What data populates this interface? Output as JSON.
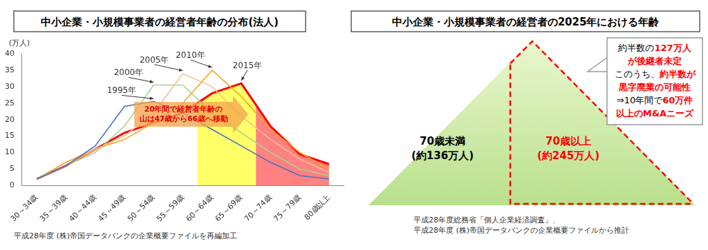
{
  "chart_data": {
    "type": "line",
    "title": "中小企業・小規模事業者の経営者年齢の分布(法人)",
    "y_label": "(万人)",
    "categories": [
      "30～34歳",
      "35～39歳",
      "40～44歳",
      "45～49歳",
      "50～54歳",
      "55～59歳",
      "60～64歳",
      "65～69歳",
      "70～74歳",
      "75～79歳",
      "80歳以上"
    ],
    "series": [
      {
        "name": "1995年",
        "color": "#4472c4",
        "values": [
          2,
          6,
          12,
          24,
          25.5,
          22,
          17,
          12,
          7,
          3,
          2
        ]
      },
      {
        "name": "2000年",
        "color": "#a9d18e",
        "values": [
          2,
          6,
          10,
          18,
          30.5,
          30.5,
          22,
          16,
          10,
          5,
          3
        ]
      },
      {
        "name": "2005年",
        "color": "#f4c28a",
        "values": [
          2,
          6,
          11,
          15,
          22,
          34,
          30,
          21,
          14,
          8,
          4
        ]
      },
      {
        "name": "2010年",
        "color": "#f5a623",
        "values": [
          2,
          7,
          11,
          14,
          19,
          25,
          35,
          27,
          17,
          10,
          5
        ]
      },
      {
        "name": "2015年",
        "color": "#ff0000",
        "values": [
          2,
          6,
          11,
          16,
          19,
          22,
          28,
          31,
          18,
          9.5,
          6.5
        ]
      }
    ],
    "ylim": [
      0,
      40
    ],
    "yticks": [
      0,
      5,
      10,
      15,
      20,
      25,
      30,
      35,
      40
    ],
    "grid": false,
    "bands": [
      {
        "from": "60～64歳",
        "to": "65～69歳",
        "color": "#ffff4d"
      },
      {
        "from": "70～74歳",
        "to": "80歳以上",
        "color": "#ff6b6b"
      }
    ],
    "annotations": [
      {
        "lines": [
          "20年間で経営者年齢の",
          "山は47歳から66歳へ移動"
        ]
      }
    ],
    "source": "平成28年度 (株)帝国データバンクの企業概要ファイルを再編加工"
  },
  "diagram": {
    "title": "中小企業・小規模事業者の経営者の2025年における年齢",
    "sections": [
      {
        "label": "70歳未満",
        "sublabel": "(約136万人)"
      },
      {
        "label": "70歳以上",
        "sublabel": "(約245万人)",
        "highlight": true
      }
    ],
    "callout": [
      [
        {
          "text": "約半数の"
        },
        {
          "text": "127万人",
          "highlight": true
        }
      ],
      [
        {
          "text": "が後継者未定",
          "highlight": true
        }
      ],
      [
        {
          "text": "このうち、"
        },
        {
          "text": "約半数が",
          "highlight": true
        }
      ],
      [
        {
          "text": "黒字廃業の可能性",
          "highlight": true
        }
      ],
      [
        {
          "text": "⇒10年間で"
        },
        {
          "text": "60万件",
          "highlight": true
        }
      ],
      [
        {
          "text": "以上のM&Aニーズ",
          "highlight": true
        }
      ]
    ],
    "source": [
      "平成28年度総務省「個人企業経済調査」、",
      "平成28年度 (株)帝国データバンクの企業概要ファイルから推計"
    ]
  }
}
